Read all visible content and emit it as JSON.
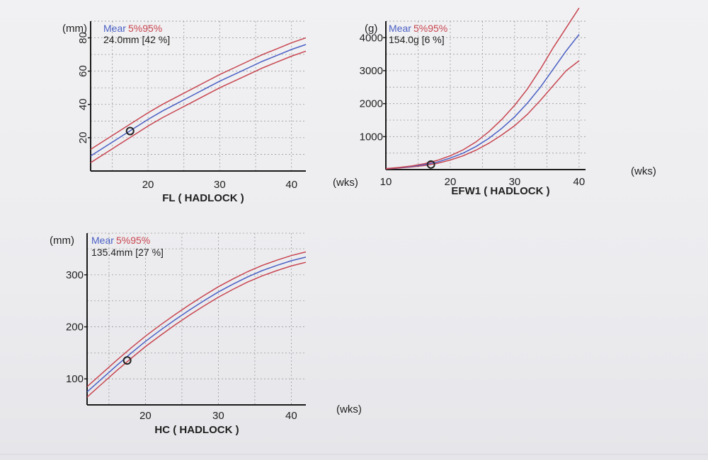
{
  "colors": {
    "mean": "#4a5fc4",
    "percentile": "#c8454f",
    "grid": "#9a9a9a",
    "axis": "#1a1a1a"
  },
  "chart_data": [
    {
      "type": "line",
      "title": "FL ( HADLOCK )",
      "unit_label": "(mm)",
      "xlabel": "(wks)",
      "legend": {
        "mean": "Mear",
        "pct": "5%95%"
      },
      "measurement": "24.0mm [42 %]",
      "x_ticks": [
        20,
        30,
        40
      ],
      "y_ticks": [
        20,
        40,
        60,
        80
      ],
      "xlim": [
        12,
        42
      ],
      "ylim": [
        0,
        90
      ],
      "x": [
        12,
        14,
        16,
        18,
        20,
        22,
        24,
        26,
        28,
        30,
        32,
        34,
        36,
        38,
        40,
        42
      ],
      "series": [
        {
          "name": "5%",
          "values": [
            5,
            10.5,
            16,
            21.5,
            27,
            32,
            36.5,
            41,
            45.5,
            50,
            54,
            58,
            62,
            65.5,
            69,
            72
          ]
        },
        {
          "name": "Mean",
          "values": [
            9,
            14.5,
            20,
            25.5,
            31,
            36,
            40.5,
            45,
            49.5,
            54,
            58,
            62,
            66,
            69.5,
            73,
            76
          ]
        },
        {
          "name": "95%",
          "values": [
            13,
            18.5,
            24,
            29.5,
            35,
            40,
            44.5,
            49,
            53.5,
            58,
            62,
            66,
            70,
            73.5,
            77,
            80
          ]
        }
      ],
      "point": {
        "x": 17.5,
        "y": 24
      },
      "grid": true
    },
    {
      "type": "line",
      "title": "EFW1 ( HADLOCK )",
      "unit_label": "(g)",
      "xlabel": "(wks)",
      "legend": {
        "mean": "Mear",
        "pct": "5%95%"
      },
      "measurement": "154.0g [6 %]",
      "x_ticks": [
        10,
        20,
        30,
        40
      ],
      "y_ticks": [
        1000,
        2000,
        3000,
        4000
      ],
      "xlim": [
        10,
        41
      ],
      "ylim": [
        0,
        4500
      ],
      "x": [
        10,
        12,
        14,
        16,
        18,
        20,
        22,
        24,
        26,
        28,
        30,
        32,
        34,
        36,
        38,
        40
      ],
      "series": [
        {
          "name": "5%",
          "values": [
            20,
            45,
            80,
            125,
            190,
            290,
            420,
            590,
            800,
            1050,
            1330,
            1680,
            2100,
            2550,
            3000,
            3300
          ]
        },
        {
          "name": "Mean",
          "values": [
            25,
            55,
            95,
            150,
            230,
            350,
            500,
            700,
            950,
            1250,
            1600,
            2020,
            2500,
            3050,
            3600,
            4100
          ]
        },
        {
          "name": "95%",
          "values": [
            30,
            65,
            110,
            180,
            280,
            420,
            600,
            840,
            1150,
            1520,
            1950,
            2450,
            3050,
            3700,
            4300,
            4900
          ]
        }
      ],
      "point": {
        "x": 17,
        "y": 154
      },
      "grid": true
    },
    {
      "type": "line",
      "title": "HC ( HADLOCK )",
      "unit_label": "(mm)",
      "xlabel": "(wks)",
      "legend": {
        "mean": "Mear",
        "pct": "5%95%"
      },
      "measurement": "135.4mm [27 %]",
      "x_ticks": [
        20,
        30,
        40
      ],
      "y_ticks": [
        100,
        200,
        300
      ],
      "xlim": [
        12,
        42
      ],
      "ylim": [
        50,
        380
      ],
      "x": [
        12,
        14,
        16,
        18,
        20,
        22,
        24,
        26,
        28,
        30,
        32,
        34,
        36,
        38,
        40,
        42
      ],
      "series": [
        {
          "name": "5%",
          "values": [
            65,
            90,
            115,
            139,
            162,
            183,
            203,
            222,
            240,
            257,
            272,
            286,
            298,
            308,
            317,
            324
          ]
        },
        {
          "name": "Mean",
          "values": [
            75,
            100,
            125,
            149,
            172,
            193,
            213,
            232,
            250,
            267,
            282,
            296,
            308,
            318,
            327,
            334
          ]
        },
        {
          "name": "95%",
          "values": [
            85,
            110,
            135,
            159,
            182,
            203,
            223,
            242,
            260,
            277,
            292,
            306,
            318,
            328,
            337,
            344
          ]
        }
      ],
      "point": {
        "x": 17.5,
        "y": 135.4
      },
      "grid": true
    }
  ]
}
